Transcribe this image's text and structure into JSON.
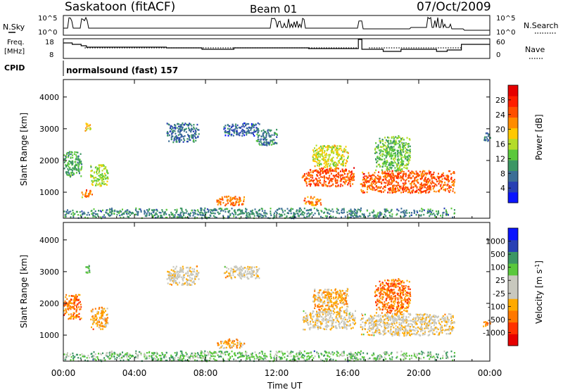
{
  "header": {
    "title": "Saskatoon (fitACF)",
    "beam": "Beam 01",
    "date": "07/Oct/2009"
  },
  "strips": {
    "nsky_label": "N.Sky",
    "nsky_ticks": [
      "10^5",
      "10^0"
    ],
    "nsearch_label": "N.Search",
    "nsearch_ticks": [
      "10^5",
      "10^0"
    ],
    "freq_label_1": "Freq.",
    "freq_label_2": "[MHz]",
    "freq_ticks": [
      "18",
      "8"
    ],
    "nave_label": "Nave",
    "nave_ticks": [
      "60",
      "0"
    ],
    "cpid_label": "CPID",
    "cpid_text": "normalsound (fast) 157"
  },
  "colors": {
    "power": [
      "#0a14ff",
      "#2840b4",
      "#3c6e96",
      "#3c9664",
      "#5ac83c",
      "#b4dc28",
      "#ffc800",
      "#ff8c00",
      "#ff5000",
      "#ff1e00",
      "#e60000"
    ],
    "velocity": [
      "#e60000",
      "#ff3200",
      "#ff7800",
      "#ffaa00",
      "#c8c8be",
      "#c8c8be",
      "#5ac83c",
      "#3c9664",
      "#2840b4",
      "#0a14ff"
    ]
  },
  "chart_data": [
    {
      "type": "heatmap",
      "name": "power-panel",
      "ylabel": "Slant Range [km]",
      "y_ticks": [
        1000,
        2000,
        3000,
        4000
      ],
      "ylim": [
        180,
        4550
      ],
      "xlim": [
        0,
        24
      ],
      "colorbar_label": "Power [dB]",
      "colorbar_ticks": [
        "4",
        "8",
        "12",
        "16",
        "20",
        "24",
        "28"
      ],
      "colorbar_range": [
        0,
        30
      ],
      "scatter_patches": [
        {
          "t": [
            0.0,
            1.0
          ],
          "r": [
            1500,
            2300
          ],
          "level": 10
        },
        {
          "t": [
            1.0,
            1.6
          ],
          "r": [
            850,
            1100
          ],
          "level": 22
        },
        {
          "t": [
            1.2,
            1.5
          ],
          "r": [
            2950,
            3250
          ],
          "level": 18
        },
        {
          "t": [
            1.5,
            2.5
          ],
          "r": [
            1200,
            1900
          ],
          "level": 14
        },
        {
          "t": [
            5.8,
            7.6
          ],
          "r": [
            2600,
            3200
          ],
          "level": 6
        },
        {
          "t": [
            8.6,
            10.2
          ],
          "r": [
            600,
            900
          ],
          "level": 22
        },
        {
          "t": [
            9.0,
            11.0
          ],
          "r": [
            2800,
            3200
          ],
          "level": 5
        },
        {
          "t": [
            10.8,
            12.0
          ],
          "r": [
            2500,
            3000
          ],
          "level": 7
        },
        {
          "t": [
            13.4,
            16.4
          ],
          "r": [
            1200,
            1800
          ],
          "level": 24
        },
        {
          "t": [
            14.0,
            16.0
          ],
          "r": [
            1800,
            2500
          ],
          "level": 16
        },
        {
          "t": [
            13.5,
            14.5
          ],
          "r": [
            600,
            900
          ],
          "level": 22
        },
        {
          "t": [
            16.7,
            22.0
          ],
          "r": [
            1000,
            1700
          ],
          "level": 24
        },
        {
          "t": [
            17.5,
            19.5
          ],
          "r": [
            1700,
            2800
          ],
          "level": 12
        },
        {
          "t": [
            23.6,
            24.0
          ],
          "r": [
            2600,
            2900
          ],
          "level": 6
        },
        {
          "t": [
            0.0,
            22.0
          ],
          "r": [
            200,
            520
          ],
          "level": 8
        }
      ]
    },
    {
      "type": "heatmap",
      "name": "velocity-panel",
      "ylabel": "Slant Range [km]",
      "y_ticks": [
        1000,
        2000,
        3000,
        4000
      ],
      "ylim": [
        180,
        4550
      ],
      "xlim": [
        0,
        24
      ],
      "colorbar_label": "Velocity [m s^-1]",
      "colorbar_ticks": [
        "-1000",
        "-500",
        "-100",
        "-25",
        "25",
        "100",
        "500",
        "1000"
      ],
      "x_ticks": [
        "00:00",
        "04:00",
        "08:00",
        "12:00",
        "16:00",
        "20:00",
        "00:00"
      ],
      "xlabel": "Time UT",
      "scatter_patches": [
        {
          "t": [
            0.0,
            1.0
          ],
          "r": [
            1500,
            2300
          ],
          "level": 2
        },
        {
          "t": [
            1.2,
            1.5
          ],
          "r": [
            2950,
            3250
          ],
          "level": 6
        },
        {
          "t": [
            1.5,
            2.5
          ],
          "r": [
            1200,
            1900
          ],
          "level": 3
        },
        {
          "t": [
            5.8,
            7.6
          ],
          "r": [
            2600,
            3200
          ],
          "level": 4
        },
        {
          "t": [
            8.6,
            10.2
          ],
          "r": [
            600,
            900
          ],
          "level": 3
        },
        {
          "t": [
            9.0,
            11.0
          ],
          "r": [
            2800,
            3200
          ],
          "level": 4
        },
        {
          "t": [
            13.4,
            16.4
          ],
          "r": [
            1200,
            1800
          ],
          "level": 4
        },
        {
          "t": [
            14.0,
            16.0
          ],
          "r": [
            1800,
            2500
          ],
          "level": 3
        },
        {
          "t": [
            16.7,
            22.0
          ],
          "r": [
            1000,
            1700
          ],
          "level": 4
        },
        {
          "t": [
            17.5,
            19.5
          ],
          "r": [
            1700,
            2800
          ],
          "level": 2
        },
        {
          "t": [
            23.6,
            24.0
          ],
          "r": [
            1300,
            1500
          ],
          "level": 2
        },
        {
          "t": [
            0.0,
            22.0
          ],
          "r": [
            200,
            520
          ],
          "level": 6
        }
      ]
    }
  ]
}
